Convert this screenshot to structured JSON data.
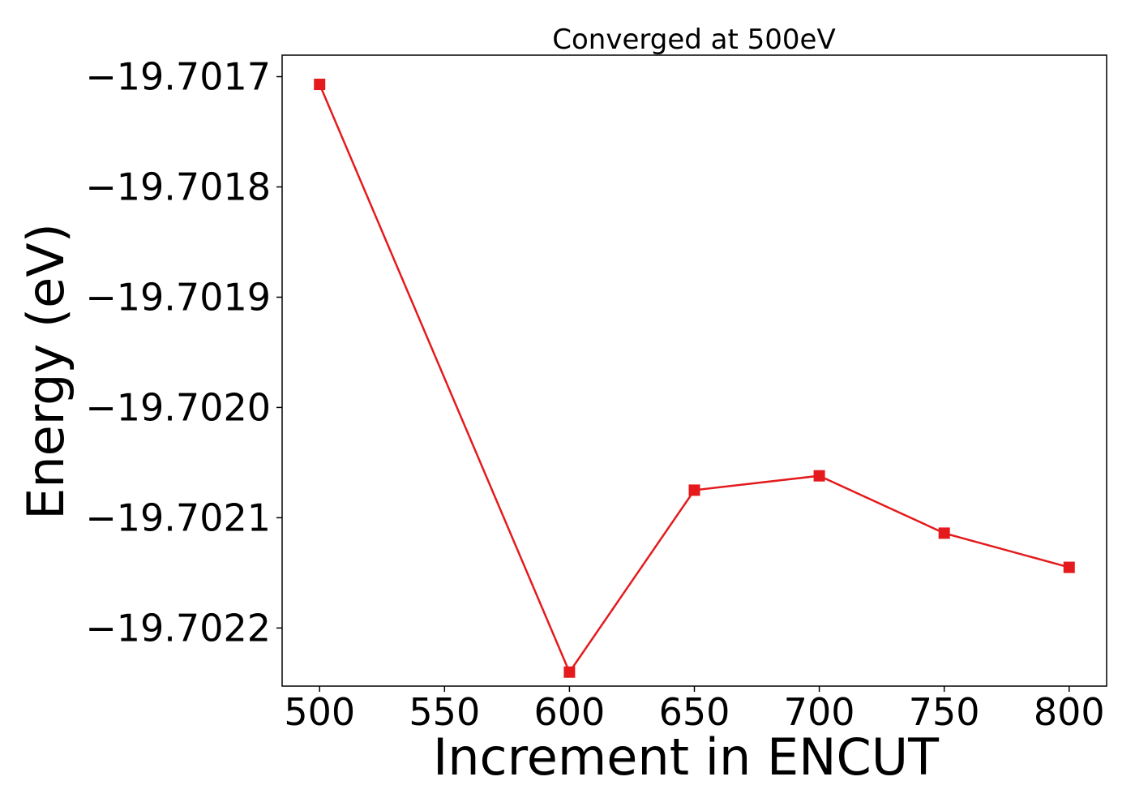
{
  "chart_data": {
    "type": "line",
    "title": "Converged at 500eV",
    "xlabel": "Increment in ENCUT",
    "ylabel": "Energy (eV)",
    "x": [
      500,
      600,
      650,
      700,
      750,
      800
    ],
    "series": [
      {
        "values": [
          -19.701707,
          -19.70224,
          -19.702075,
          -19.702062,
          -19.702114,
          -19.702145
        ],
        "color": "#e41a1c",
        "marker": "square"
      }
    ],
    "xticks": [
      500,
      550,
      600,
      650,
      700,
      750,
      800
    ],
    "xtick_labels": [
      "500",
      "550",
      "600",
      "650",
      "700",
      "750",
      "800"
    ],
    "yticks": [
      -19.7017,
      -19.7018,
      -19.7019,
      -19.702,
      -19.7021,
      -19.7022
    ],
    "ytick_labels": [
      "−19.7017",
      "−19.7018",
      "−19.7019",
      "−19.7020",
      "−19.7021",
      "−19.7022"
    ],
    "xlim": [
      485,
      815
    ],
    "ylim": [
      -19.7022527,
      -19.7016805
    ],
    "grid": false,
    "legend": false
  }
}
